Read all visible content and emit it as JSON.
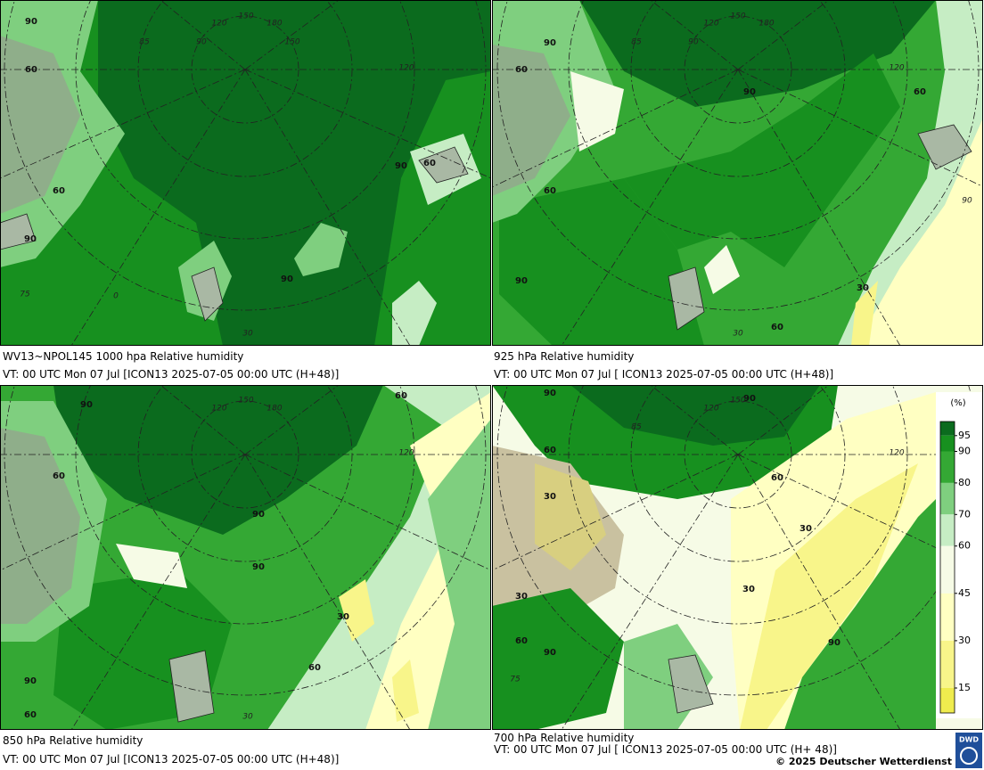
{
  "panels": [
    {
      "title": "WV13~NPOL145 1000 hpa Relative humidity",
      "valid_time": "VT: 00 UTC Mon  07 Jul [ICON13 2025-07-05 00:00 UTC  (H+48)]",
      "contour_labels": [
        90,
        60,
        60,
        90,
        90,
        90,
        60
      ],
      "grid_labels": [
        120,
        150,
        180,
        85,
        90,
        150,
        120,
        75,
        0,
        30
      ]
    },
    {
      "title": "925 hPa Relative humidity",
      "valid_time": "VT: 00 UTC Mon  07 Jul [ ICON13 2025-07-05 00:00 UTC  (H+48)]",
      "contour_labels": [
        90,
        60,
        90,
        60,
        60,
        90,
        30,
        60
      ],
      "grid_labels": [
        120,
        150,
        180,
        85,
        90,
        120,
        90,
        30
      ]
    },
    {
      "title": "850 hPa  Relative humidity",
      "valid_time": "VT: 00 UTC Mon  07 Jul [ICON13 2025-07-05 00:00 UTC  (H+48)]",
      "contour_labels": [
        90,
        60,
        60,
        90,
        90,
        30,
        60,
        90,
        60
      ],
      "grid_labels": [
        120,
        150,
        180,
        120,
        30
      ]
    },
    {
      "title": "700 hPa Relative humidity",
      "valid_time": "VT: 00 UTC Mon  07 Jul [ ICON13 2025-07-05 00:00 UTC  (H+ 48)]",
      "contour_labels": [
        90,
        90,
        60,
        30,
        60,
        30,
        30,
        30,
        60,
        90,
        90
      ],
      "grid_labels": [
        120,
        150,
        85,
        120,
        75
      ]
    }
  ],
  "legend": {
    "unit": "(%)",
    "levels": [
      95,
      90,
      80,
      70,
      60,
      45,
      30,
      15
    ],
    "colors": [
      "#0b6b1e",
      "#17901f",
      "#34a834",
      "#7fcf7f",
      "#c6edc4",
      "#f6fbe6",
      "#ffffc2",
      "#f8f58a",
      "#efec4e"
    ]
  },
  "footer": {
    "copyright": "© 2025 Deutscher Wetterdienst",
    "logo": "DWD"
  }
}
